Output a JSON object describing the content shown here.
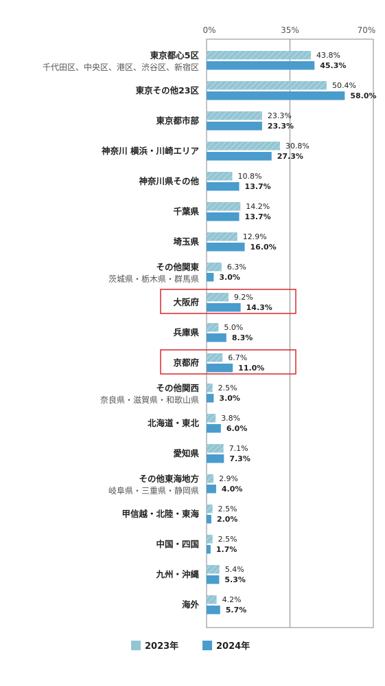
{
  "chart_data": {
    "type": "bar",
    "orientation": "horizontal",
    "xlim": [
      0,
      70
    ],
    "ticks": [
      "0%",
      "35%",
      "70%"
    ],
    "legend": {
      "position": "bottom"
    },
    "series": [
      {
        "name": "2023年",
        "color": "#93c5d3",
        "pattern": "hatched"
      },
      {
        "name": "2024年",
        "color": "#4a9ccc"
      }
    ],
    "categories": [
      {
        "label": "東京都心5区",
        "sub": "千代田区、中央区、港区、渋谷区、新宿区",
        "v2023": 43.8,
        "v2024": 45.3
      },
      {
        "label": "東京その他23区",
        "sub": "",
        "v2023": 50.4,
        "v2024": 58.0
      },
      {
        "label": "東京都市部",
        "sub": "",
        "v2023": 23.3,
        "v2024": 23.3
      },
      {
        "label": "神奈川 横浜・川崎エリア",
        "sub": "",
        "v2023": 30.8,
        "v2024": 27.3
      },
      {
        "label": "神奈川県その他",
        "sub": "",
        "v2023": 10.8,
        "v2024": 13.7
      },
      {
        "label": "千葉県",
        "sub": "",
        "v2023": 14.2,
        "v2024": 13.7
      },
      {
        "label": "埼玉県",
        "sub": "",
        "v2023": 12.9,
        "v2024": 16.0
      },
      {
        "label": "その他関東",
        "sub": "茨城県・栃木県・群馬県",
        "v2023": 6.3,
        "v2024": 3.0
      },
      {
        "label": "大阪府",
        "sub": "",
        "v2023": 9.2,
        "v2024": 14.3,
        "highlight": true
      },
      {
        "label": "兵庫県",
        "sub": "",
        "v2023": 5.0,
        "v2024": 8.3
      },
      {
        "label": "京都府",
        "sub": "",
        "v2023": 6.7,
        "v2024": 11.0,
        "highlight": true
      },
      {
        "label": "その他関西",
        "sub": "奈良県・滋賀県・和歌山県",
        "v2023": 2.5,
        "v2024": 3.0
      },
      {
        "label": "北海道・東北",
        "sub": "",
        "v2023": 3.8,
        "v2024": 6.0
      },
      {
        "label": "愛知県",
        "sub": "",
        "v2023": 7.1,
        "v2024": 7.3
      },
      {
        "label": "その他東海地方",
        "sub": "岐阜県・三重県・静岡県",
        "v2023": 2.9,
        "v2024": 4.0
      },
      {
        "label": "甲信越・北陸・東海",
        "sub": "",
        "v2023": 2.5,
        "v2024": 2.0
      },
      {
        "label": "中国・四国",
        "sub": "",
        "v2023": 2.5,
        "v2024": 1.7
      },
      {
        "label": "九州・沖縄",
        "sub": "",
        "v2023": 5.4,
        "v2024": 5.3
      },
      {
        "label": "海外",
        "sub": "",
        "v2023": 4.2,
        "v2024": 5.7
      }
    ],
    "highlight_color": "#d9262c"
  }
}
